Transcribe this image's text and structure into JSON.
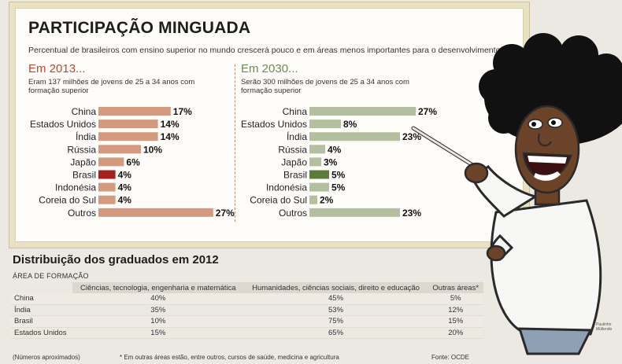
{
  "title": "PARTICIPAÇÃO MINGUADA",
  "subtitle": "Percentual de brasileiros com ensino superior no mundo crescerá pouco e em áreas menos importantes para o desenvolvimento",
  "panels": [
    {
      "heading": "Em 2013...",
      "description": "Eram 137 milhões de jovens de 25 a 34 anos com formação superior"
    },
    {
      "heading": "Em 2030...",
      "description": "Serão 300 milhões de jovens de 25 a 34 anos com formação superior"
    }
  ],
  "chart_data": [
    {
      "type": "bar",
      "orientation": "horizontal",
      "title": "Em 2013...",
      "categories": [
        "China",
        "Estados Unidos",
        "Índia",
        "Rússia",
        "Japão",
        "Brasil",
        "Indonésia",
        "Coreia do Sul",
        "Outros"
      ],
      "values": [
        17,
        14,
        14,
        10,
        6,
        4,
        4,
        4,
        27
      ],
      "labels": [
        "17%",
        "14%",
        "14%",
        "10%",
        "6%",
        "4%",
        "4%",
        "4%",
        "27%"
      ],
      "unit": "%",
      "highlight": "Brasil",
      "color": "#d39a80",
      "highlight_color": "#a5201f"
    },
    {
      "type": "bar",
      "orientation": "horizontal",
      "title": "Em 2030...",
      "categories": [
        "China",
        "Estados Unidos",
        "Índia",
        "Rússia",
        "Japão",
        "Brasil",
        "Indonésia",
        "Coreia do Sul",
        "Outros"
      ],
      "values": [
        27,
        8,
        23,
        4,
        3,
        5,
        5,
        2,
        23
      ],
      "labels": [
        "27%",
        "8%",
        "23%",
        "4%",
        "3%",
        "5%",
        "5%",
        "2%",
        "23%"
      ],
      "unit": "%",
      "highlight": "Brasil",
      "color": "#b3c09f",
      "highlight_color": "#5a7d3b"
    },
    {
      "type": "table",
      "title": "Distribuição dos graduados em 2012",
      "caption": "ÁREA DE FORMAÇÃO",
      "columns": [
        "Ciências, tecnologia, engenharia e matemática",
        "Humanidades, ciências sociais, direito e educação",
        "Outras áreas*"
      ],
      "rows": [
        {
          "country": "China",
          "values": [
            "40%",
            "45%",
            "5%"
          ]
        },
        {
          "country": "Índia",
          "values": [
            "35%",
            "53%",
            "12%"
          ]
        },
        {
          "country": "Brasil",
          "values": [
            "10%",
            "75%",
            "15%"
          ]
        },
        {
          "country": "Estados Unidos",
          "values": [
            "15%",
            "65%",
            "20%"
          ]
        }
      ]
    }
  ],
  "footer": {
    "approx_note": "(Números aproximados)",
    "note": "* Em outras áreas estão, entre outros, cursos de saúde, medicina e agricultura",
    "source": "Fonte: OCDE"
  },
  "signature": "Paulinho Müllendo"
}
